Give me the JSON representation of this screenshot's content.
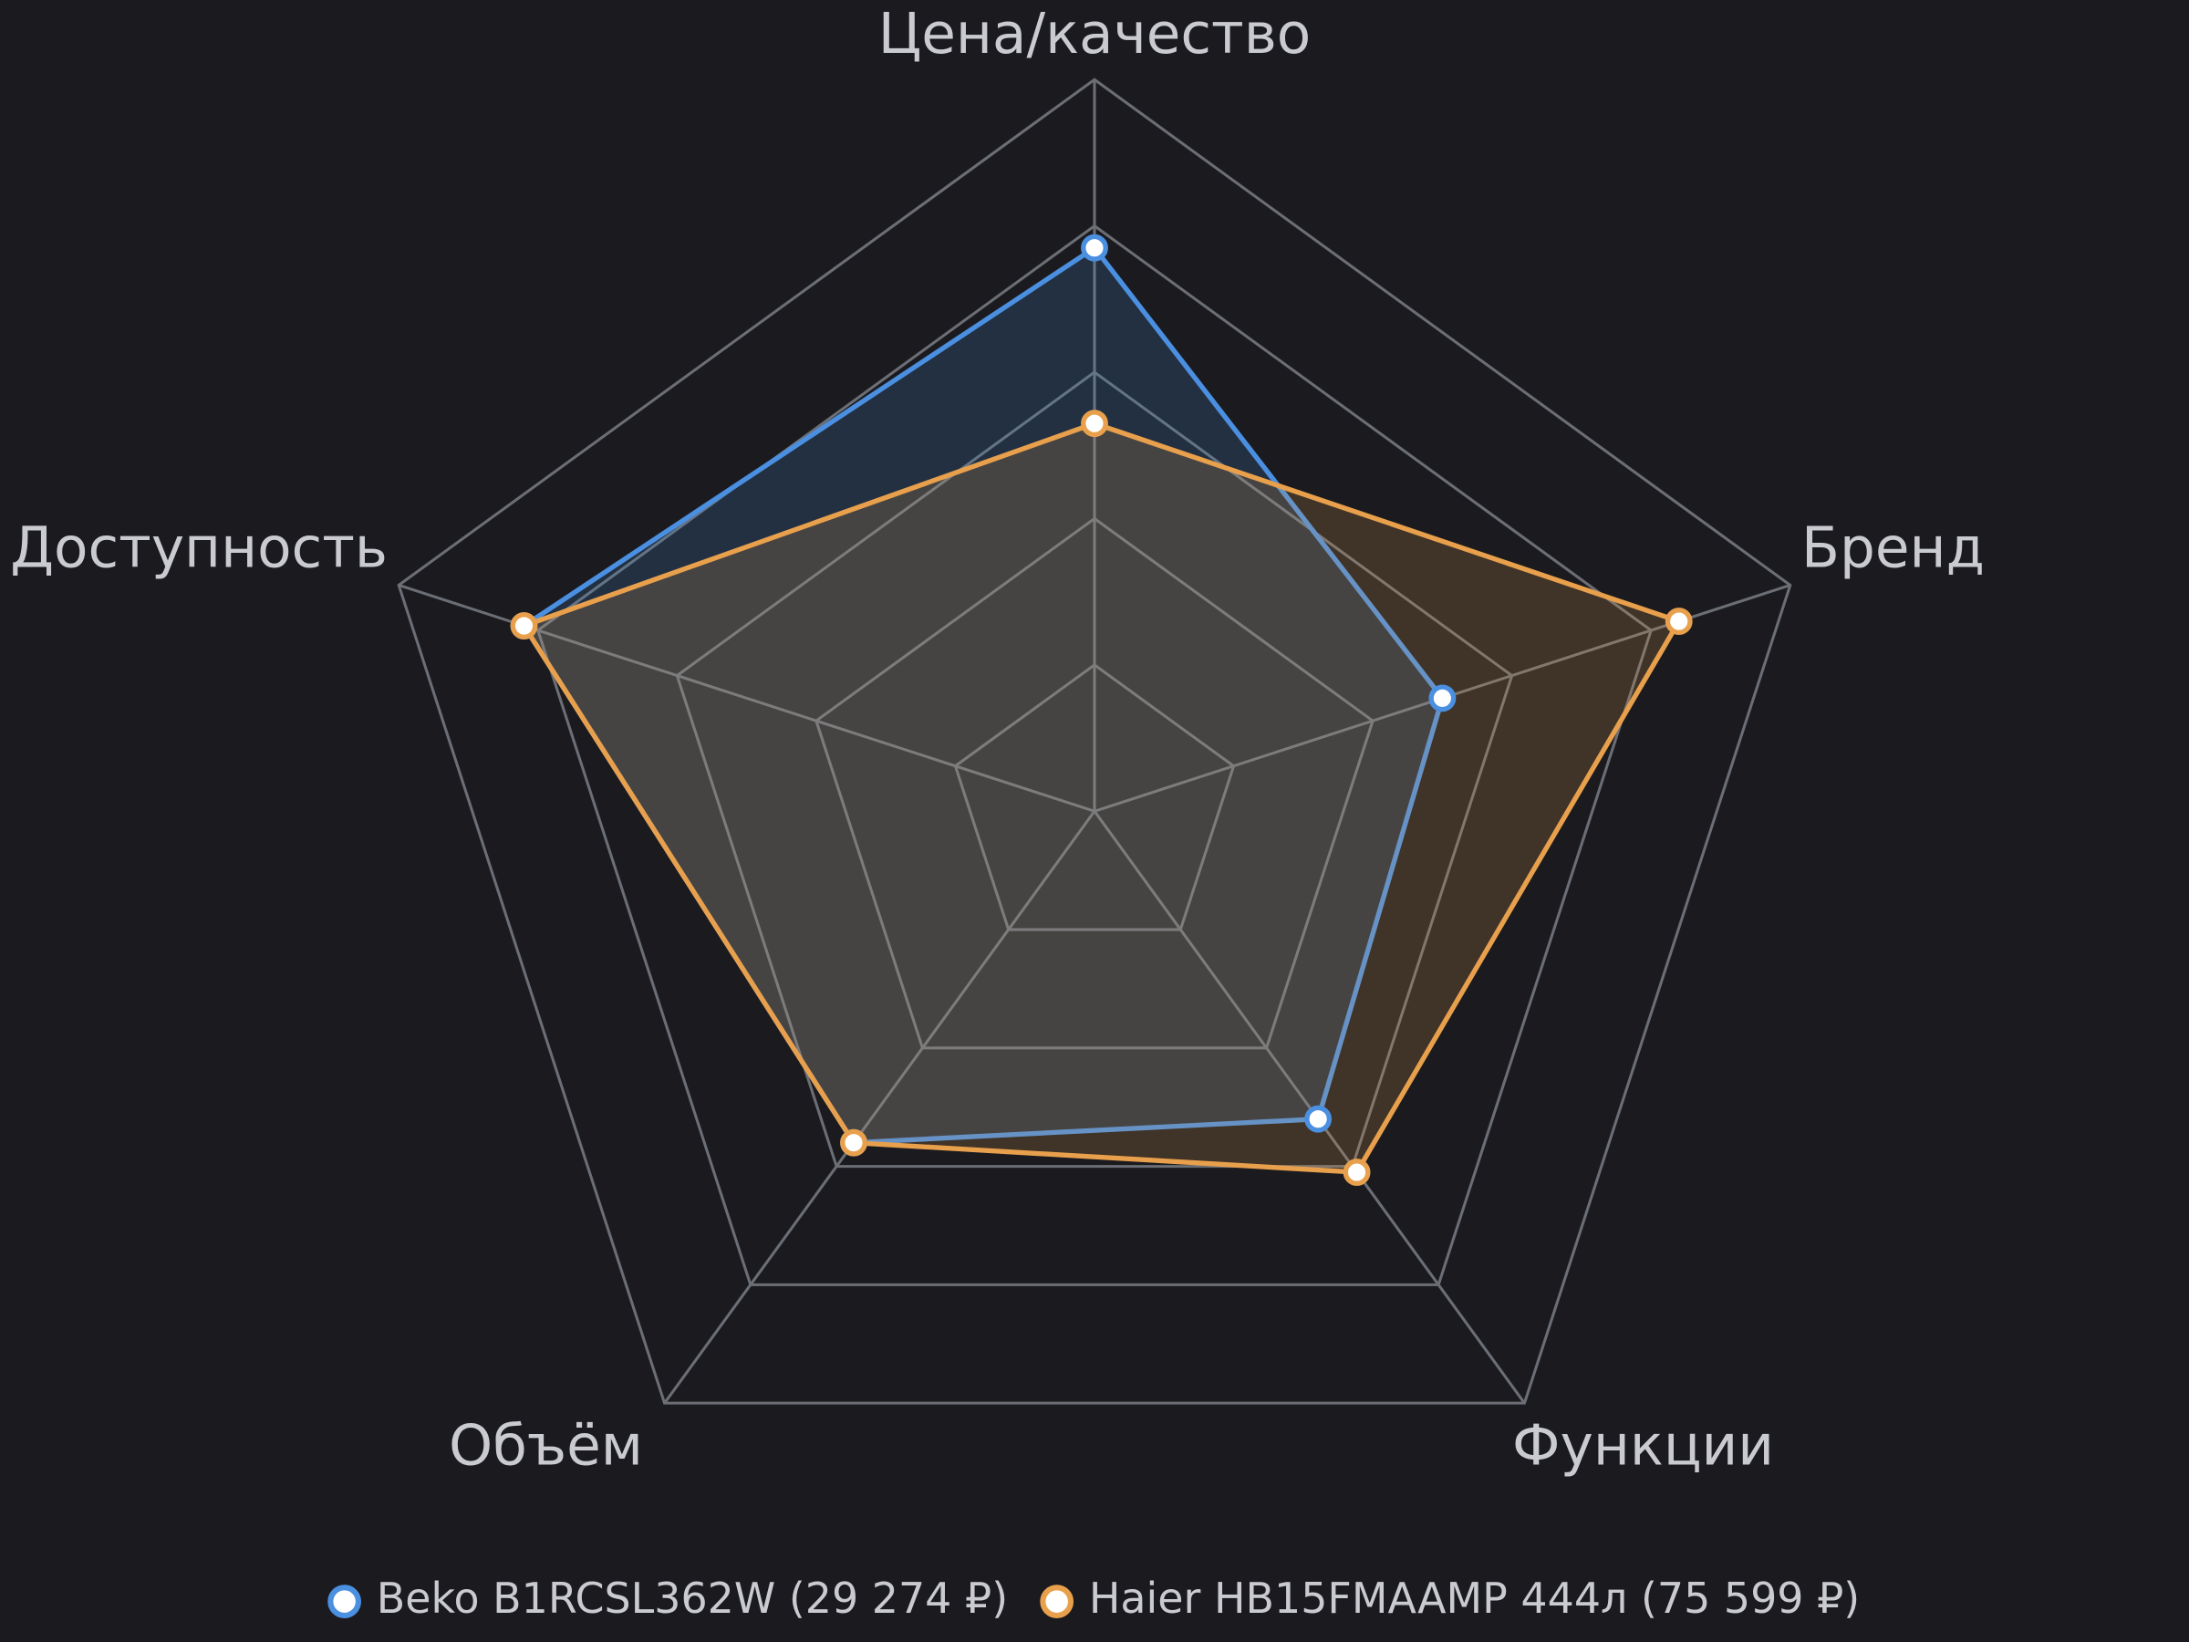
{
  "chart_data": {
    "type": "radar",
    "categories": [
      "Цена/качество",
      "Бренд",
      "Функции",
      "Объём",
      "Доступность"
    ],
    "series": [
      {
        "name": "Beko B1RCSL362W (29 274 ₽)",
        "color": "#4a8fe0",
        "values": [
          7.7,
          5.0,
          5.2,
          5.6,
          8.2
        ]
      },
      {
        "name": "Haier HB15FMAAMP 444л (75 599 ₽)",
        "color": "#e8a04c",
        "values": [
          5.3,
          8.4,
          6.1,
          5.6,
          8.2
        ]
      }
    ],
    "rlim": [
      0,
      10
    ],
    "rticks": [
      2,
      4,
      6,
      8,
      10
    ],
    "grid": true,
    "legend": "bottom"
  }
}
